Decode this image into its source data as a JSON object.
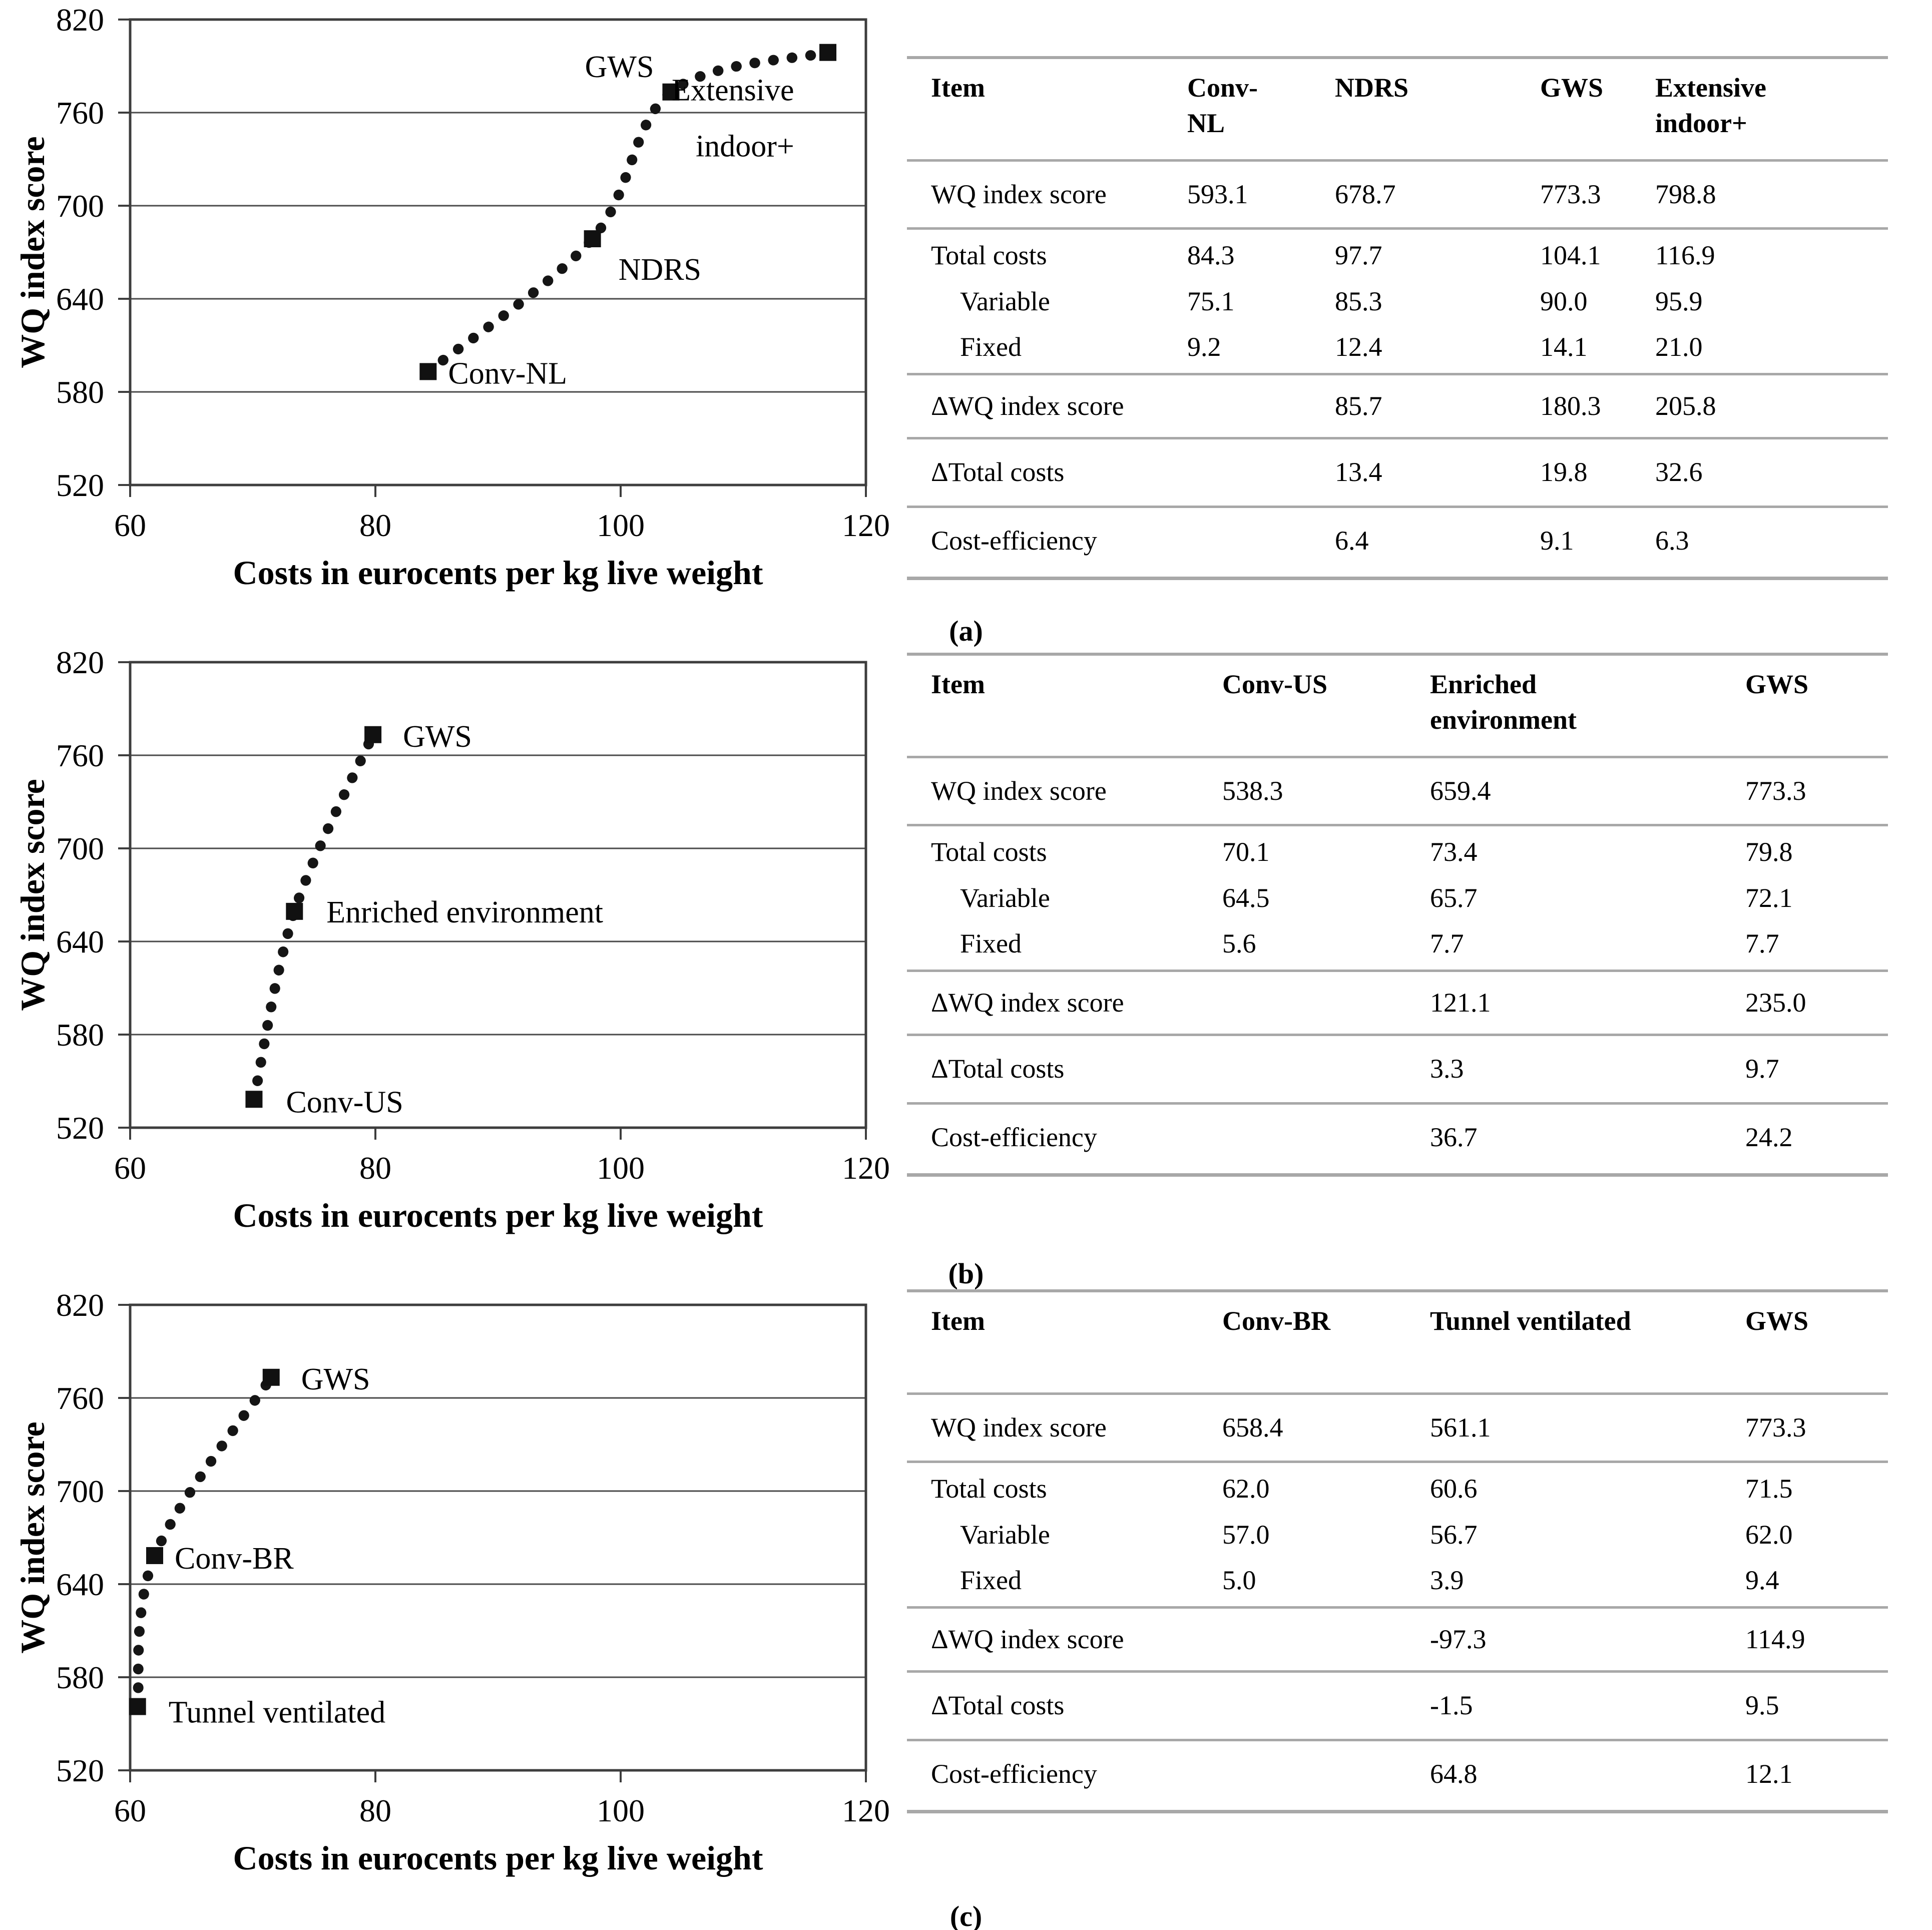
{
  "figure": {
    "panel_labels": [
      "(a)",
      "(b)",
      "(c)"
    ]
  },
  "chart_data": [
    {
      "panel": "a",
      "type": "scatter",
      "title": "",
      "xlabel": "Costs in eurocents per kg live weight",
      "ylabel": "WQ index score",
      "xlim": [
        60,
        120
      ],
      "ylim": [
        520,
        820
      ],
      "xticks": [
        60,
        80,
        100,
        120
      ],
      "yticks": [
        520,
        580,
        640,
        700,
        760,
        820
      ],
      "grid": "horizontal-y",
      "marker": "square",
      "line_style": "dotted",
      "points": [
        {
          "label": "Conv-NL",
          "x": 84.3,
          "y": 593.1
        },
        {
          "label": "NDRS",
          "x": 97.7,
          "y": 678.7
        },
        {
          "label": "GWS",
          "x": 104.1,
          "y": 773.3
        },
        {
          "label": "Extensive indoor+",
          "x": 116.9,
          "y": 798.8
        }
      ],
      "table": {
        "columns": [
          "Item",
          "Conv-NL",
          "NDRS",
          "GWS",
          "Extensive indoor+"
        ],
        "rows": [
          {
            "label": "WQ index score",
            "values": [
              "593.1",
              "678.7",
              "773.3",
              "798.8"
            ]
          },
          {
            "label": "Total costs",
            "rule_before": true,
            "values": [
              "84.3",
              "97.7",
              "104.1",
              "116.9"
            ]
          },
          {
            "label": "Variable",
            "indent": true,
            "values": [
              "75.1",
              "85.3",
              "90.0",
              "95.9"
            ]
          },
          {
            "label": "Fixed",
            "indent": true,
            "values": [
              "9.2",
              "12.4",
              "14.1",
              "21.0"
            ]
          },
          {
            "label": "ΔWQ index score",
            "rule_before": true,
            "values": [
              "",
              "85.7",
              "180.3",
              "205.8"
            ]
          },
          {
            "label": "ΔTotal costs",
            "rule_before": true,
            "values": [
              "",
              "13.4",
              "19.8",
              "32.6"
            ]
          },
          {
            "label": "Cost-efficiency",
            "rule_before": true,
            "values": [
              "",
              "6.4",
              "9.1",
              "6.3"
            ]
          }
        ]
      }
    },
    {
      "panel": "b",
      "type": "scatter",
      "title": "",
      "xlabel": "Costs in eurocents per kg live weight",
      "ylabel": "WQ index score",
      "xlim": [
        60,
        120
      ],
      "ylim": [
        520,
        820
      ],
      "xticks": [
        60,
        80,
        100,
        120
      ],
      "yticks": [
        520,
        580,
        640,
        700,
        760,
        820
      ],
      "grid": "horizontal-y",
      "marker": "square",
      "line_style": "dotted",
      "points": [
        {
          "label": "Conv-US",
          "x": 70.1,
          "y": 538.3
        },
        {
          "label": "Enriched environment",
          "x": 73.4,
          "y": 659.4
        },
        {
          "label": "GWS",
          "x": 79.8,
          "y": 773.3
        }
      ],
      "table": {
        "columns": [
          "Item",
          "Conv-US",
          "Enriched environment",
          "GWS"
        ],
        "rows": [
          {
            "label": "WQ index score",
            "values": [
              "538.3",
              "659.4",
              "773.3"
            ]
          },
          {
            "label": "Total costs",
            "rule_before": true,
            "values": [
              "70.1",
              "73.4",
              "79.8"
            ]
          },
          {
            "label": "Variable",
            "indent": true,
            "values": [
              "64.5",
              "65.7",
              "72.1"
            ]
          },
          {
            "label": "Fixed",
            "indent": true,
            "values": [
              "5.6",
              "7.7",
              "7.7"
            ]
          },
          {
            "label": "ΔWQ index score",
            "rule_before": true,
            "values": [
              "",
              "121.1",
              "235.0"
            ]
          },
          {
            "label": "ΔTotal costs",
            "rule_before": true,
            "values": [
              "",
              "3.3",
              "9.7"
            ]
          },
          {
            "label": "Cost-efficiency",
            "rule_before": true,
            "values": [
              "",
              "36.7",
              "24.2"
            ]
          }
        ]
      }
    },
    {
      "panel": "c",
      "type": "scatter",
      "title": "",
      "xlabel": "Costs in eurocents per kg live weight",
      "ylabel": "WQ index score",
      "xlim": [
        60,
        120
      ],
      "ylim": [
        520,
        820
      ],
      "xticks": [
        60,
        80,
        100,
        120
      ],
      "yticks": [
        520,
        580,
        640,
        700,
        760,
        820
      ],
      "grid": "horizontal-y",
      "marker": "square",
      "line_style": "dotted",
      "points": [
        {
          "label": "Tunnel ventilated",
          "x": 60.6,
          "y": 561.1
        },
        {
          "label": "Conv-BR",
          "x": 62.0,
          "y": 658.4
        },
        {
          "label": "GWS",
          "x": 71.5,
          "y": 773.3
        }
      ],
      "table": {
        "columns": [
          "Item",
          "Conv-BR",
          "Tunnel ventilated",
          "GWS"
        ],
        "rows": [
          {
            "label": "WQ index score",
            "values": [
              "658.4",
              "561.1",
              "773.3"
            ]
          },
          {
            "label": "Total costs",
            "rule_before": true,
            "values": [
              "62.0",
              "60.6",
              "71.5"
            ]
          },
          {
            "label": "Variable",
            "indent": true,
            "values": [
              "57.0",
              "56.7",
              "62.0"
            ]
          },
          {
            "label": "Fixed",
            "indent": true,
            "values": [
              "5.0",
              "3.9",
              "9.4"
            ]
          },
          {
            "label": "ΔWQ index score",
            "rule_before": true,
            "values": [
              "",
              "-97.3",
              "114.9"
            ]
          },
          {
            "label": "ΔTotal costs",
            "rule_before": true,
            "values": [
              "",
              "-1.5",
              "9.5"
            ]
          },
          {
            "label": "Cost-efficiency",
            "rule_before": true,
            "values": [
              "",
              "64.8",
              "12.1"
            ]
          }
        ]
      }
    }
  ]
}
